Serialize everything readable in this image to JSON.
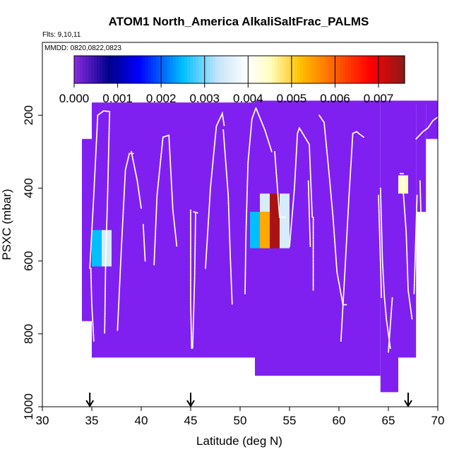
{
  "chart_data": {
    "type": "heatmap",
    "title": "ATOM1 North_America AlkaliSaltFrac_PALMS",
    "subtitle_flights": "Flts: 9,10,11",
    "subtitle_dates": "MMDD: 0820,0822,0823",
    "xlabel": "Latitude (deg N)",
    "ylabel": "PSXC (mbar)",
    "xlim": [
      30,
      70
    ],
    "ylim": [
      1000,
      0
    ],
    "xticks": [
      30,
      35,
      40,
      45,
      50,
      55,
      60,
      65,
      70
    ],
    "xtick_labels": [
      "30",
      "35",
      "40",
      "45",
      "50",
      "55",
      "60",
      "65",
      "70"
    ],
    "yticks": [
      200,
      400,
      600,
      800,
      1000
    ],
    "ytick_labels": [
      "200",
      "400",
      "600",
      "800",
      "1000"
    ],
    "colorbar": {
      "range": [
        0,
        0.0076
      ],
      "ticks": [
        0,
        0.001,
        0.002,
        0.003,
        0.004,
        0.005,
        0.006,
        0.007
      ],
      "tick_labels": [
        "0.000",
        "0.001",
        "0.002",
        "0.003",
        "0.004",
        "0.005",
        "0.006",
        "0.007"
      ],
      "stops": [
        {
          "v": 0.0,
          "c": "#8a2be2"
        },
        {
          "v": 0.0008,
          "c": "#00008b"
        },
        {
          "v": 0.0015,
          "c": "#0000ff"
        },
        {
          "v": 0.0025,
          "c": "#00bfff"
        },
        {
          "v": 0.0033,
          "c": "#c6e4f8"
        },
        {
          "v": 0.004,
          "c": "#ffffff"
        },
        {
          "v": 0.0045,
          "c": "#ffffc0"
        },
        {
          "v": 0.0052,
          "c": "#ffc000"
        },
        {
          "v": 0.006,
          "c": "#ff6000"
        },
        {
          "v": 0.0068,
          "c": "#ff0000"
        },
        {
          "v": 0.0076,
          "c": "#8b1a1a"
        }
      ]
    },
    "background_cells": [
      {
        "x": [
          35,
          51.5
        ],
        "p": [
          165,
          855
        ]
      },
      {
        "x": [
          51.5,
          68.5
        ],
        "p": [
          160,
          965
        ]
      }
    ],
    "purple_color": "#8020f0",
    "cell_value_default": 0.0,
    "regions": [
      {
        "x": [
          34,
          35
        ],
        "p": [
          265,
          765
        ]
      },
      {
        "x": [
          35,
          51.5
        ],
        "p": [
          165,
          865
        ]
      },
      {
        "x": [
          51.5,
          64.2
        ],
        "p": [
          160,
          915
        ]
      },
      {
        "x": [
          64.2,
          66.0
        ],
        "p": [
          160,
          960
        ]
      },
      {
        "x": [
          66.0,
          67.8
        ],
        "p": [
          160,
          865
        ]
      },
      {
        "x": [
          67.8,
          68.8
        ],
        "p": [
          160,
          465
        ]
      },
      {
        "x": [
          68.8,
          70
        ],
        "p": [
          160,
          265
        ]
      },
      {
        "x": [
          51.5,
          70
        ],
        "p": [
          160,
          170
        ]
      }
    ],
    "highlight_cells": [
      {
        "x": [
          35,
          36
        ],
        "p": [
          515,
          615
        ],
        "value": 0.0025
      },
      {
        "x": [
          36,
          37
        ],
        "p": [
          515,
          615
        ],
        "value": 0.0035
      },
      {
        "x": [
          51,
          52
        ],
        "p": [
          465,
          565
        ],
        "value": 0.0025
      },
      {
        "x": [
          52,
          53
        ],
        "p": [
          415,
          465
        ],
        "value": 0.0035
      },
      {
        "x": [
          52,
          53
        ],
        "p": [
          465,
          565
        ],
        "value": 0.0054
      },
      {
        "x": [
          53,
          54
        ],
        "p": [
          415,
          565
        ],
        "value": 0.0074
      },
      {
        "x": [
          54,
          55
        ],
        "p": [
          415,
          565
        ],
        "value": 0.0035
      },
      {
        "x": [
          66,
          67
        ],
        "p": [
          365,
          415
        ],
        "value": 0.0045
      }
    ],
    "flight_tracks": [
      [
        [
          34.8,
          620
        ],
        [
          35.2,
          420
        ],
        [
          35.6,
          200
        ],
        [
          36.2,
          188
        ],
        [
          36.8,
          190
        ],
        [
          36.6,
          420
        ],
        [
          36.4,
          600
        ],
        [
          36.3,
          800
        ]
      ],
      [
        [
          34.9,
          620
        ],
        [
          35.0,
          720
        ],
        [
          35.2,
          820
        ]
      ],
      [
        [
          37.6,
          790
        ],
        [
          38.0,
          560
        ],
        [
          38.4,
          350
        ],
        [
          38.8,
          305
        ],
        [
          39.2,
          305
        ]
      ],
      [
        [
          39.0,
          300
        ],
        [
          39.6,
          380
        ],
        [
          40.0,
          455
        ]
      ],
      [
        [
          40.2,
          500
        ],
        [
          40.4,
          600
        ]
      ],
      [
        [
          41.3,
          610
        ],
        [
          41.6,
          420
        ],
        [
          42.2,
          260
        ],
        [
          42.8,
          255
        ],
        [
          43.2,
          460
        ],
        [
          43.6,
          560
        ]
      ],
      [
        [
          45.0,
          460
        ],
        [
          45.0,
          600
        ],
        [
          45.0,
          720
        ],
        [
          45.1,
          840
        ]
      ],
      [
        [
          45.3,
          465
        ],
        [
          45.7,
          468
        ]
      ],
      [
        [
          45.5,
          470
        ],
        [
          45.4,
          650
        ],
        [
          45.2,
          840
        ]
      ],
      [
        [
          46.5,
          620
        ],
        [
          47.0,
          400
        ],
        [
          47.6,
          230
        ],
        [
          48.2,
          195
        ],
        [
          48.4,
          230
        ]
      ],
      [
        [
          48.3,
          240
        ],
        [
          48.8,
          420
        ],
        [
          49.0,
          580
        ],
        [
          49.2,
          720
        ]
      ],
      [
        [
          50.5,
          690
        ],
        [
          50.6,
          520
        ],
        [
          50.8,
          330
        ],
        [
          51.2,
          210
        ],
        [
          51.6,
          180
        ],
        [
          52.5,
          240
        ],
        [
          53.2,
          300
        ]
      ],
      [
        [
          53.5,
          300
        ],
        [
          54.0,
          480
        ],
        [
          54.6,
          480
        ]
      ],
      [
        [
          55.0,
          560
        ],
        [
          55.5,
          400
        ],
        [
          55.8,
          250
        ],
        [
          56.0,
          235
        ],
        [
          57.0,
          280
        ],
        [
          57.3,
          480
        ]
      ],
      [
        [
          57.4,
          480
        ],
        [
          57.4,
          680
        ]
      ],
      [
        [
          56.9,
          380
        ],
        [
          57.1,
          560
        ]
      ],
      [
        [
          58.0,
          200
        ],
        [
          58.5,
          220
        ],
        [
          59.0,
          360
        ],
        [
          59.4,
          480
        ],
        [
          59.8,
          630
        ],
        [
          60.4,
          720
        ],
        [
          60.8,
          720
        ]
      ],
      [
        [
          60.2,
          820
        ],
        [
          60.6,
          630
        ],
        [
          61.0,
          430
        ],
        [
          61.4,
          250
        ],
        [
          61.8,
          245
        ],
        [
          62.0,
          250
        ],
        [
          62.5,
          260
        ]
      ],
      [
        [
          64.2,
          400
        ],
        [
          64.4,
          600
        ],
        [
          64.6,
          700
        ],
        [
          64.8,
          760
        ],
        [
          65.2,
          840
        ]
      ],
      [
        [
          64.0,
          420
        ],
        [
          64.3,
          700
        ]
      ],
      [
        [
          65.0,
          850
        ],
        [
          65.4,
          700
        ]
      ],
      [
        [
          66.2,
          360
        ],
        [
          66.5,
          360
        ]
      ],
      [
        [
          66.4,
          370
        ],
        [
          66.8,
          520
        ],
        [
          67.0,
          680
        ],
        [
          67.4,
          760
        ]
      ],
      [
        [
          67.8,
          265
        ],
        [
          68.5,
          245
        ],
        [
          69.0,
          235
        ],
        [
          69.5,
          215
        ],
        [
          70,
          205
        ]
      ],
      [
        [
          67.9,
          420
        ],
        [
          67.6,
          690
        ]
      ],
      [
        [
          68.2,
          380
        ],
        [
          68.3,
          480
        ]
      ]
    ],
    "arrow_latitudes": [
      34.8,
      45.0,
      67.0
    ]
  }
}
